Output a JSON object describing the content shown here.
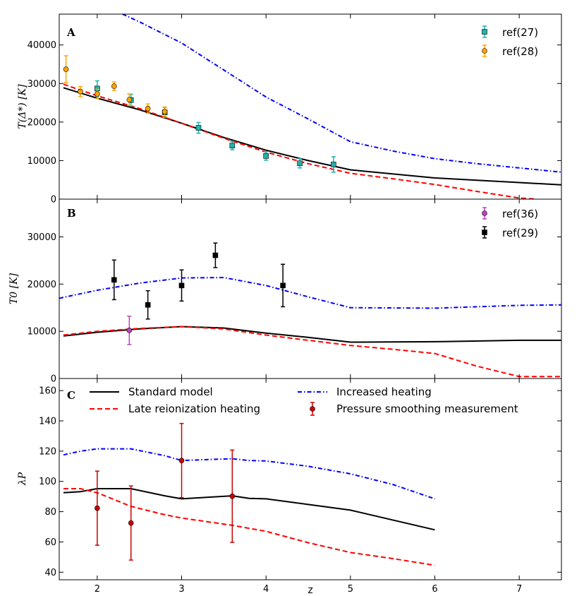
{
  "chart_data": [
    {
      "type": "line",
      "panel_label": "A",
      "ylabel": "T(Δ*) [K]",
      "xlim": [
        1.55,
        7.5
      ],
      "ylim": [
        0,
        48000
      ],
      "yticks": [
        0,
        10000,
        20000,
        30000,
        40000
      ],
      "ytick_labels": [
        "0",
        "10000",
        "20000",
        "30000",
        "40000"
      ],
      "series": [
        {
          "name": "Standard model",
          "style": "solid",
          "color": "#000000",
          "x": [
            1.6,
            2.0,
            2.5,
            3.0,
            3.5,
            4.0,
            4.5,
            5.0,
            6.0,
            7.0,
            7.5
          ],
          "y": [
            28900,
            26200,
            23200,
            19700,
            16000,
            12700,
            10000,
            7600,
            5500,
            4300,
            3700
          ]
        },
        {
          "name": "Late reionization heating",
          "style": "dashed",
          "color": "#ff0000",
          "x": [
            1.6,
            2.0,
            2.5,
            3.0,
            3.5,
            4.0,
            4.5,
            5.0,
            5.5,
            6.0,
            6.5,
            7.0,
            7.2
          ],
          "y": [
            29800,
            26800,
            23500,
            19700,
            15800,
            12200,
            9200,
            6700,
            5300,
            3800,
            2000,
            300,
            0
          ]
        },
        {
          "name": "Increased heating",
          "style": "dashdot",
          "color": "#0000ff",
          "x": [
            2.3,
            2.5,
            3.0,
            3.5,
            4.0,
            4.5,
            5.0,
            5.5,
            6.0,
            6.5,
            7.0,
            7.5
          ],
          "y": [
            48000,
            46000,
            40500,
            33500,
            26500,
            20800,
            14900,
            12500,
            10500,
            9200,
            8100,
            7000
          ]
        }
      ],
      "points": [
        {
          "name": "ref(27)",
          "marker": "square",
          "color": "#20b2aa",
          "x": [
            2.0,
            2.4,
            2.8,
            3.2,
            3.6,
            4.0,
            4.4,
            4.8
          ],
          "y": [
            28700,
            25700,
            22500,
            18500,
            13900,
            11200,
            9300,
            9000
          ],
          "err": [
            2000,
            1500,
            1300,
            1400,
            1100,
            1100,
            1200,
            2000
          ]
        },
        {
          "name": "ref(28)",
          "marker": "circle",
          "color": "#ffa500",
          "x": [
            1.63,
            1.8,
            2.0,
            2.2,
            2.38,
            2.6,
            2.8
          ],
          "y": [
            33700,
            27900,
            27300,
            29300,
            25800,
            23500,
            22700
          ],
          "err": [
            3500,
            1300,
            1200,
            1100,
            1500,
            1200,
            1200
          ]
        }
      ],
      "legend": {
        "position": "top-right",
        "entries": [
          "ref(27)",
          "ref(28)"
        ]
      }
    },
    {
      "type": "line",
      "panel_label": "B",
      "ylabel": "T0 [K]",
      "xlim": [
        1.55,
        7.5
      ],
      "ylim": [
        0,
        38000
      ],
      "yticks": [
        0,
        10000,
        20000,
        30000
      ],
      "ytick_labels": [
        "0",
        "10000",
        "20000",
        "30000"
      ],
      "series": [
        {
          "name": "Standard model",
          "style": "solid",
          "color": "#000000",
          "x": [
            1.6,
            2.0,
            2.5,
            3.0,
            3.5,
            4.0,
            4.5,
            5.0,
            6.0,
            7.0,
            7.5
          ],
          "y": [
            9000,
            9800,
            10500,
            11000,
            10700,
            9600,
            8700,
            7700,
            7800,
            8100,
            8100
          ]
        },
        {
          "name": "Late reionization heating",
          "style": "dashed",
          "color": "#ff0000",
          "x": [
            1.6,
            2.0,
            2.5,
            3.0,
            3.5,
            4.0,
            4.5,
            5.0,
            5.5,
            6.0,
            6.5,
            7.0,
            7.5
          ],
          "y": [
            9200,
            10000,
            10600,
            11000,
            10500,
            9200,
            8100,
            7000,
            6200,
            5300,
            2600,
            400,
            400
          ]
        },
        {
          "name": "Increased heating",
          "style": "dashdot",
          "color": "#0000ff",
          "x": [
            1.55,
            2.0,
            2.5,
            3.0,
            3.5,
            4.0,
            4.5,
            5.0,
            6.0,
            7.0,
            7.5
          ],
          "y": [
            17000,
            18700,
            20200,
            21300,
            21400,
            19700,
            17300,
            15000,
            14900,
            15500,
            15600
          ]
        }
      ],
      "points": [
        {
          "name": "ref(36)",
          "marker": "circle",
          "color": "#bb44bb",
          "x": [
            2.38
          ],
          "y": [
            10200
          ],
          "err": [
            3000
          ]
        },
        {
          "name": "ref(29)",
          "marker": "square",
          "color": "#000000",
          "x": [
            2.2,
            2.6,
            3.0,
            3.4,
            4.2
          ],
          "y": [
            20900,
            15600,
            19700,
            26100,
            19700
          ],
          "err": [
            4200,
            3000,
            3300,
            2600,
            4500
          ]
        }
      ],
      "legend": {
        "position": "top-right",
        "entries": [
          "ref(36)",
          "ref(29)"
        ]
      }
    },
    {
      "type": "line",
      "panel_label": "C",
      "ylabel": "λP",
      "xlabel": "z",
      "xlim": [
        1.55,
        7.5
      ],
      "ylim": [
        35,
        168
      ],
      "yticks": [
        40,
        60,
        80,
        100,
        120,
        140,
        160
      ],
      "ytick_labels": [
        "40",
        "60",
        "80",
        "100",
        "120",
        "140",
        "160"
      ],
      "xticks": [
        2,
        3,
        4,
        5,
        6,
        7
      ],
      "xtick_labels": [
        "2",
        "3",
        "4",
        "5",
        "6",
        "7"
      ],
      "series": [
        {
          "name": "Standard model",
          "style": "solid",
          "color": "#000000",
          "x": [
            1.6,
            1.8,
            2.0,
            2.4,
            2.8,
            3.0,
            3.6,
            3.8,
            4.0,
            5.0,
            6.0
          ],
          "y": [
            92.5,
            93.2,
            95.2,
            95.2,
            90.5,
            88.5,
            90.5,
            88.8,
            88.5,
            81.0,
            68.0
          ]
        },
        {
          "name": "Late reionization heating",
          "style": "dashed",
          "color": "#ff0000",
          "x": [
            1.6,
            1.8,
            2.0,
            2.4,
            2.8,
            3.0,
            3.6,
            4.0,
            4.5,
            5.0,
            5.5,
            6.0
          ],
          "y": [
            95.2,
            95.2,
            92.5,
            83.5,
            78.0,
            75.8,
            71.0,
            67.0,
            59.5,
            53.0,
            49.0,
            44.5
          ]
        },
        {
          "name": "Increased heating",
          "style": "dashdot",
          "color": "#0000ff",
          "x": [
            1.6,
            1.8,
            2.0,
            2.4,
            2.8,
            3.0,
            3.6,
            3.8,
            4.0,
            4.5,
            5.0,
            5.5,
            6.0
          ],
          "y": [
            117.5,
            120.0,
            121.5,
            121.5,
            117.0,
            113.8,
            115.0,
            113.8,
            113.5,
            110.0,
            105.0,
            98.0,
            88.5
          ]
        }
      ],
      "points": [
        {
          "name": "Pressure smoothing measurement",
          "marker": "circle",
          "color": "#cc0000",
          "x": [
            2.0,
            2.4,
            3.0,
            3.6
          ],
          "y": [
            82.3,
            72.5,
            113.8,
            90.2
          ],
          "err": [
            24.5,
            24.5,
            24.5,
            30.5
          ]
        }
      ],
      "legend": {
        "position": "top",
        "entries": [
          "Standard model",
          "Late reionization heating",
          "Increased heating",
          "Pressure smoothing measurement"
        ]
      }
    }
  ]
}
